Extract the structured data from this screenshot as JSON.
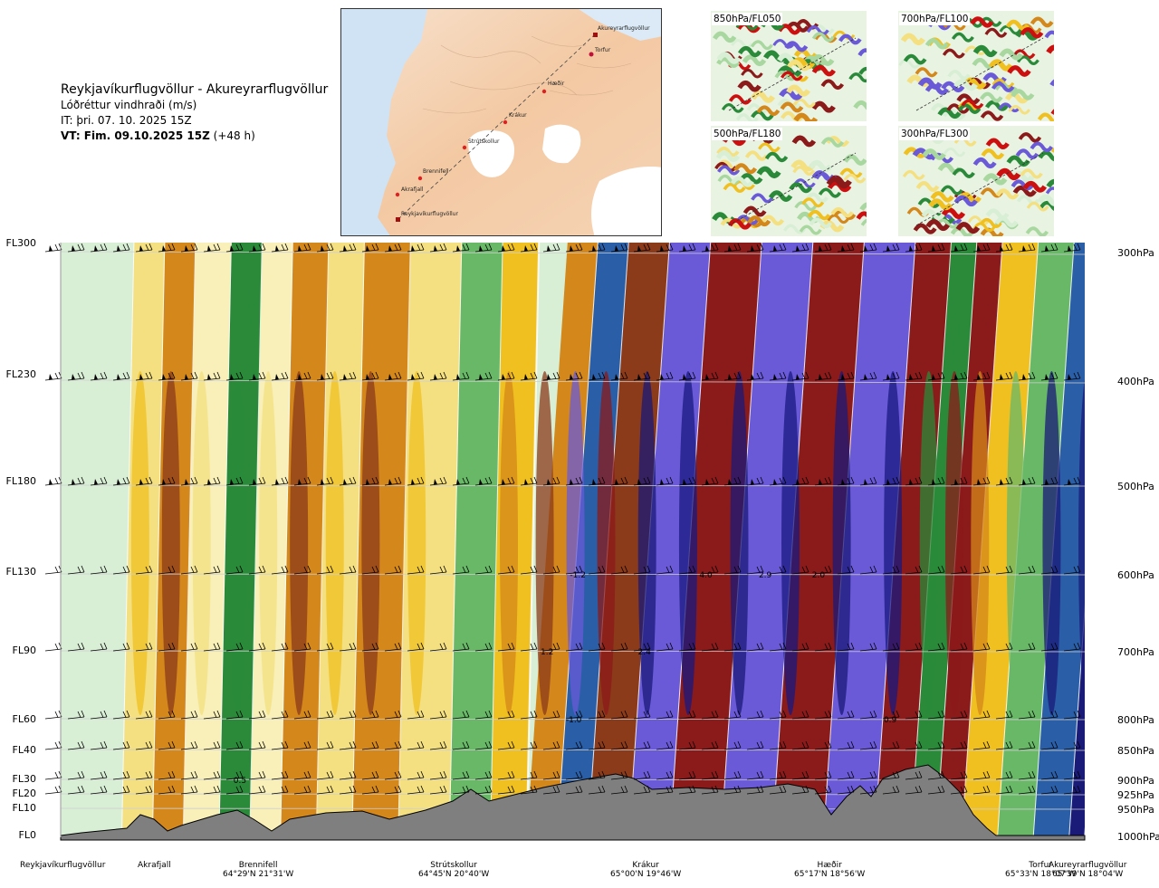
{
  "header": {
    "title": "Reykjavíkurflugvöllur - Akureyrarflugvöllur",
    "subtitle": "Lóðréttur vindhraði (m/s)",
    "it_line": "IT: þri. 07. 10. 2025 15Z",
    "vt_bold": "VT: Fim. 09.10.2025 15Z",
    "vt_suffix": "(+48 h)"
  },
  "map": {
    "route_points": [
      "Akureyrarflugvöllur",
      "Torfur",
      "Hæðir",
      "Krákur",
      "Strútskollur",
      "Brennifell",
      "Akrafjall",
      "Reykjavíkurflugvöllur"
    ]
  },
  "thumbnails": [
    {
      "label": "850hPa/FL050"
    },
    {
      "label": "700hPa/FL100"
    },
    {
      "label": "500hPa/FL180"
    },
    {
      "label": "300hPa/FL300"
    }
  ],
  "chart_data": {
    "type": "heatmap",
    "title": "Reykjavíkurflugvöllur - Akureyrarflugvöllur",
    "variable": "Lóðréttur vindhraði (m/s)",
    "left_axis_levels": [
      "FL300",
      "FL230",
      "FL180",
      "FL130",
      "FL90",
      "FL60",
      "FL40",
      "FL30",
      "FL20",
      "FL10",
      "FL0"
    ],
    "right_axis_levels": [
      "300hPa",
      "400hPa",
      "500hPa",
      "600hPa",
      "700hPa",
      "800hPa",
      "850hPa",
      "900hPa",
      "925hPa",
      "950hPa",
      "1000hPa"
    ],
    "bands": [
      {
        "x": 0.0,
        "value": 0.0
      },
      {
        "x": 0.06,
        "value": 0.4
      },
      {
        "x": 0.09,
        "value": 1.0
      },
      {
        "x": 0.12,
        "value": 0.2
      },
      {
        "x": 0.155,
        "value": -0.6
      },
      {
        "x": 0.185,
        "value": 0.2
      },
      {
        "x": 0.215,
        "value": 0.8
      },
      {
        "x": 0.25,
        "value": 0.4
      },
      {
        "x": 0.285,
        "value": 0.8
      },
      {
        "x": 0.33,
        "value": 0.4
      },
      {
        "x": 0.38,
        "value": -0.3
      },
      {
        "x": 0.42,
        "value": 0.5
      },
      {
        "x": 0.455,
        "value": 1.0
      },
      {
        "x": 0.485,
        "value": -1.2
      },
      {
        "x": 0.515,
        "value": 1.6
      },
      {
        "x": 0.555,
        "value": -1.8
      },
      {
        "x": 0.595,
        "value": 2.0
      },
      {
        "x": 0.645,
        "value": -1.8
      },
      {
        "x": 0.695,
        "value": 2.0
      },
      {
        "x": 0.745,
        "value": -1.6
      },
      {
        "x": 0.795,
        "value": 2.0
      },
      {
        "x": 0.83,
        "value": -0.6
      },
      {
        "x": 0.855,
        "value": 1.8
      },
      {
        "x": 0.88,
        "value": 0.6
      },
      {
        "x": 0.915,
        "value": -0.3
      },
      {
        "x": 0.95,
        "value": -1.4
      },
      {
        "x": 0.985,
        "value": -2.5
      },
      {
        "x": 1.0,
        "value": -1.2
      }
    ],
    "contour_labels": [
      {
        "x": 0.501,
        "level_hpa": 800,
        "text": "-1.0"
      },
      {
        "x": 0.475,
        "level_hpa": 700,
        "text": "1.2"
      },
      {
        "x": 0.57,
        "level_hpa": 700,
        "text": "2.4"
      },
      {
        "x": 0.505,
        "level_hpa": 600,
        "text": "-1.2"
      },
      {
        "x": 0.63,
        "level_hpa": 600,
        "text": "4.0"
      },
      {
        "x": 0.688,
        "level_hpa": 600,
        "text": "2.9"
      },
      {
        "x": 0.74,
        "level_hpa": 600,
        "text": "2.0"
      },
      {
        "x": 0.175,
        "level_hpa": 900,
        "text": "0.5"
      },
      {
        "x": 0.81,
        "level_hpa": 800,
        "text": "0.9"
      }
    ],
    "locations": [
      {
        "name": "Reykjavíkurflugvöllur",
        "coord": ""
      },
      {
        "name": "Akrafjall",
        "coord": ""
      },
      {
        "name": "Brennifell",
        "coord": "64°29'N 21°31'W"
      },
      {
        "name": "Strútskollur",
        "coord": "64°45'N 20°40'W"
      },
      {
        "name": "Krákur",
        "coord": "65°00'N 19°46'W"
      },
      {
        "name": "Hæðir",
        "coord": "65°17'N 18°56'W"
      },
      {
        "name": "Torfur",
        "coord": "65°33'N 18°07'W"
      },
      {
        "name": "Akureyrarflugvöllur",
        "coord": "65°39'N 18°04'W"
      }
    ]
  }
}
